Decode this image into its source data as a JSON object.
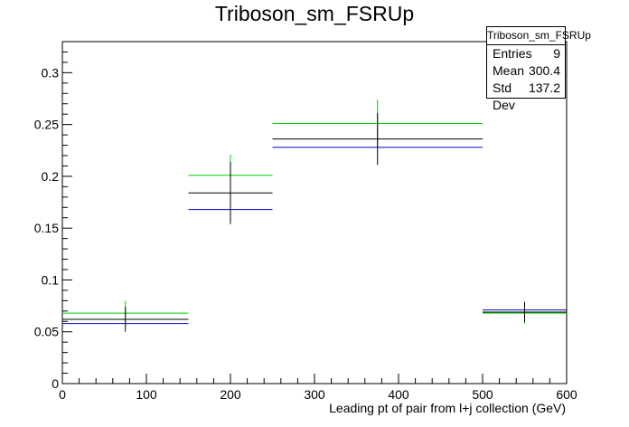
{
  "title": "Triboson_sm_FSRUp",
  "stats": {
    "name": "Triboson_sm_FSRUp",
    "rows": [
      {
        "label": "Entries",
        "value": "9"
      },
      {
        "label": "Mean",
        "value": "300.4"
      },
      {
        "label": "Std Dev",
        "value": "137.2"
      }
    ]
  },
  "colors": {
    "nominal": "#000000",
    "up": "#00cc00",
    "down": "#0000cc"
  },
  "chart_data": {
    "type": "bar",
    "title": "Triboson_sm_FSRUp",
    "xlabel": "Leading pt of pair from l+j collection (GeV)",
    "ylabel": "",
    "xlim": [
      0,
      600
    ],
    "ylim": [
      0,
      0.33
    ],
    "xticks": [
      0,
      100,
      200,
      300,
      400,
      500,
      600
    ],
    "yticks": [
      0,
      0.05,
      0.1,
      0.15,
      0.2,
      0.25,
      0.3
    ],
    "xtick_labels": [
      "0",
      "100",
      "200",
      "300",
      "400",
      "500",
      "600"
    ],
    "ytick_labels": [
      "0",
      "0.05",
      "0.1",
      "0.15",
      "0.2",
      "0.25",
      "0.3"
    ],
    "bins": [
      [
        0,
        150
      ],
      [
        150,
        250
      ],
      [
        250,
        500
      ],
      [
        500,
        600
      ]
    ],
    "series": [
      {
        "color": "#00cc00",
        "values": [
          0.068,
          0.201,
          0.251,
          0.068
        ],
        "errors": [
          0.012,
          0.02,
          0.023,
          0.01
        ]
      },
      {
        "color": "#0000cc",
        "values": [
          0.058,
          0.168,
          0.228,
          0.071
        ],
        "errors": [
          0.0,
          0.0,
          0.0,
          0.0
        ]
      },
      {
        "color": "#000000",
        "values": [
          0.062,
          0.184,
          0.236,
          0.069
        ],
        "errors": [
          0.012,
          0.03,
          0.025,
          0.01
        ]
      }
    ]
  }
}
